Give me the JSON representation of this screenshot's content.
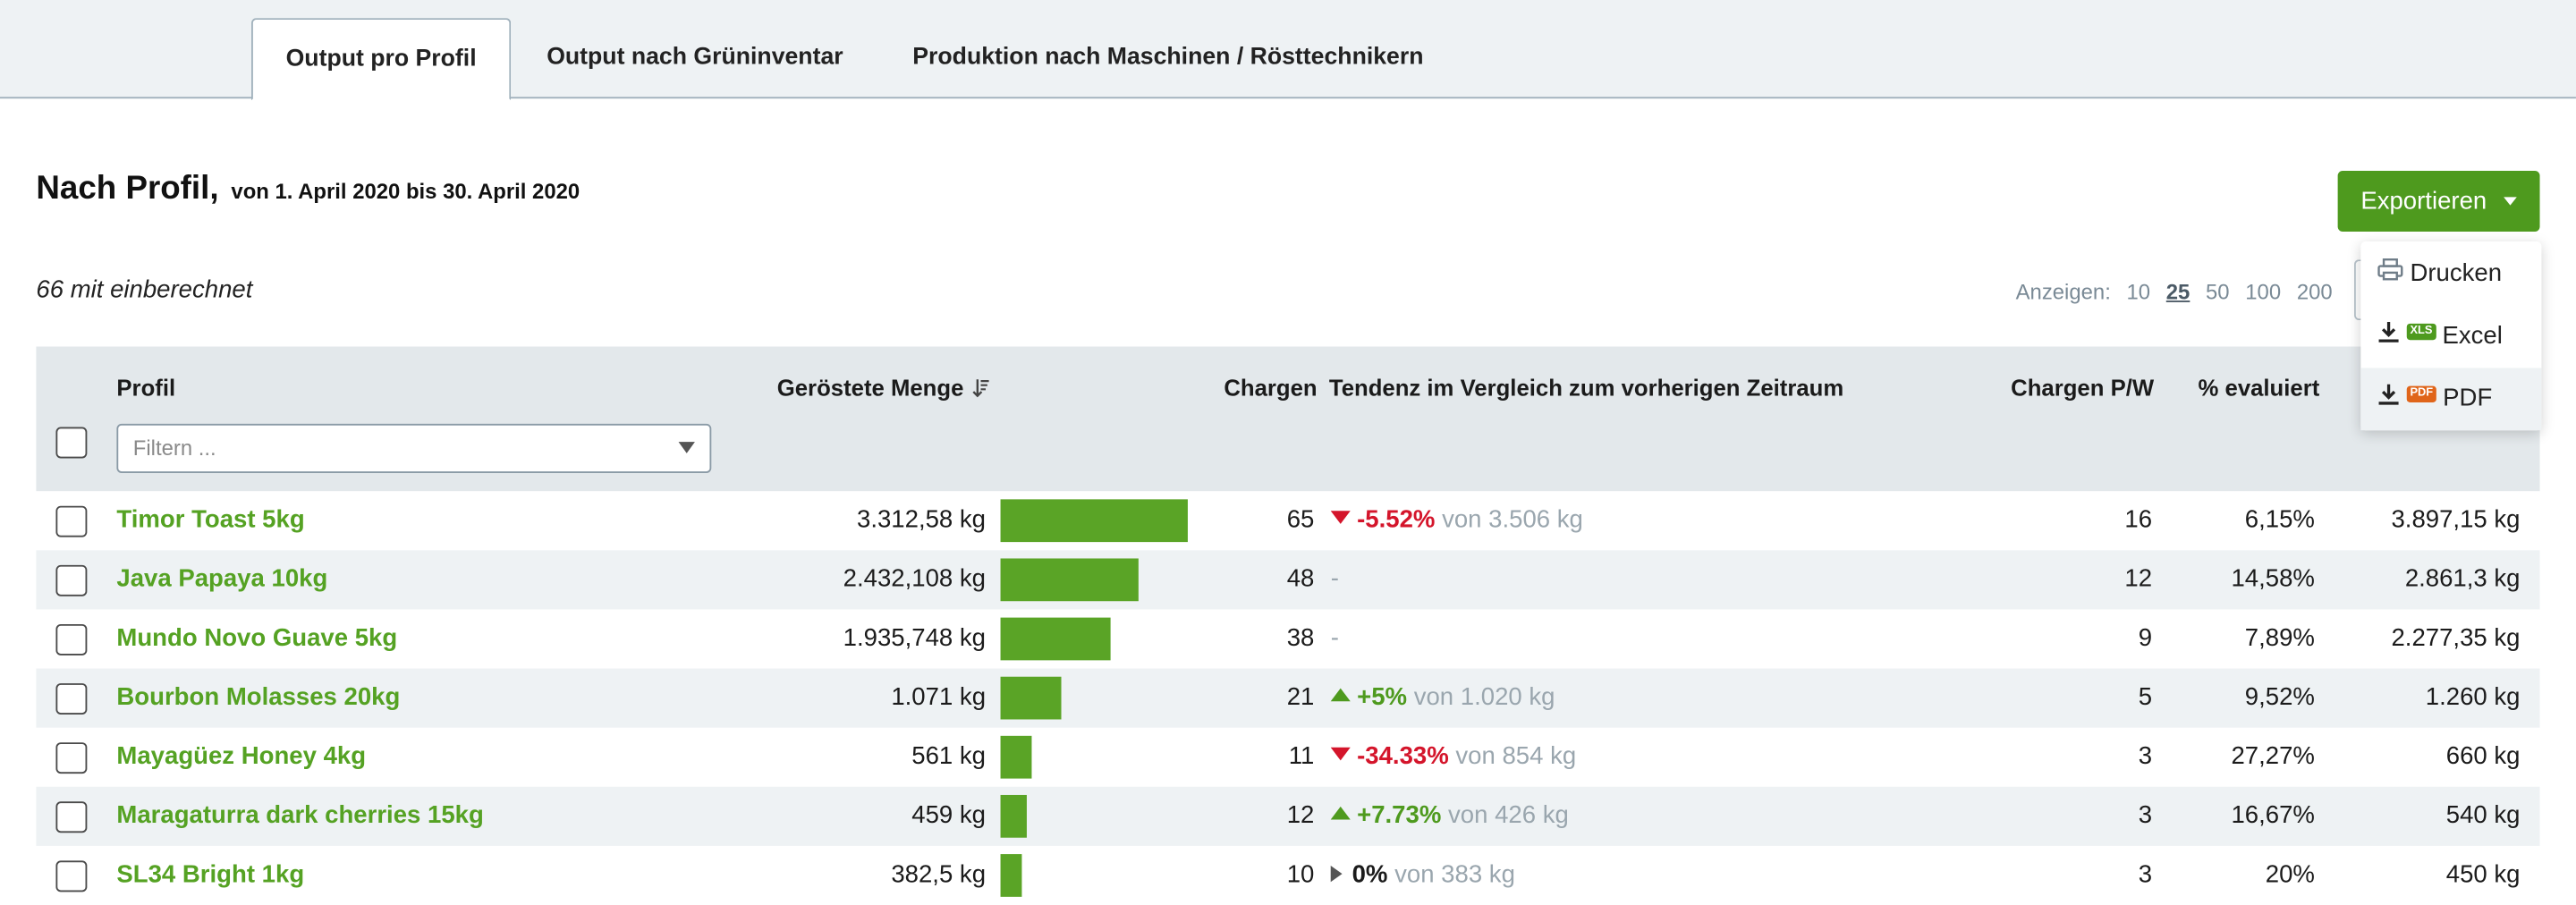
{
  "tabs": [
    {
      "label": "Output pro Profil",
      "active": true
    },
    {
      "label": "Output nach Grüninventar",
      "active": false
    },
    {
      "label": "Produktion nach Maschinen / Rösttechnikern",
      "active": false
    }
  ],
  "header": {
    "title": "Nach Profil,",
    "range": "von 1. April 2020 bis 30. April 2020",
    "count": "66 mit einberechnet"
  },
  "export": {
    "label": "Exportieren",
    "menu": [
      {
        "label": "Drucken",
        "icon": "printer-icon"
      },
      {
        "label": "Excel",
        "icon": "download-icon",
        "badge": "XLS",
        "badge_color": "#4e9a1e"
      },
      {
        "label": "PDF",
        "icon": "download-icon",
        "badge": "PDF",
        "badge_color": "#e0651a"
      }
    ]
  },
  "pager": {
    "label": "Anzeigen:",
    "options": [
      "10",
      "25",
      "50",
      "100",
      "200"
    ],
    "selected": "25"
  },
  "table": {
    "columns": {
      "profile": "Profil",
      "roasted": "Geröstete Menge",
      "batches": "Chargen",
      "trend": "Tendenz im Vergleich zum vorherigen Zeitraum",
      "batches_pw": "Chargen P/W",
      "evaluated": "% evaluiert"
    },
    "filter_placeholder": "Filtern ...",
    "rows": [
      {
        "name": "Timor Toast 5kg",
        "roasted": "3.312,58 kg",
        "bar_fraction": 1.0,
        "batches": "65",
        "trend_dir": "down",
        "trend_pct": "-5.52%",
        "trend_from": "von 3.506 kg",
        "batches_pw": "16",
        "evaluated": "6,15%",
        "green": "3.897,15 kg"
      },
      {
        "name": "Java Papaya 10kg",
        "roasted": "2.432,108 kg",
        "bar_fraction": 0.734,
        "batches": "48",
        "trend_dir": "none",
        "trend_pct": "-",
        "trend_from": "",
        "batches_pw": "12",
        "evaluated": "14,58%",
        "green": "2.861,3 kg"
      },
      {
        "name": "Mundo Novo Guave 5kg",
        "roasted": "1.935,748 kg",
        "bar_fraction": 0.584,
        "batches": "38",
        "trend_dir": "none",
        "trend_pct": "-",
        "trend_from": "",
        "batches_pw": "9",
        "evaluated": "7,89%",
        "green": "2.277,35 kg"
      },
      {
        "name": "Bourbon Molasses 20kg",
        "roasted": "1.071 kg",
        "bar_fraction": 0.323,
        "batches": "21",
        "trend_dir": "up",
        "trend_pct": "+5%",
        "trend_from": "von 1.020 kg",
        "batches_pw": "5",
        "evaluated": "9,52%",
        "green": "1.260 kg"
      },
      {
        "name": "Mayagüez Honey 4kg",
        "roasted": "561 kg",
        "bar_fraction": 0.169,
        "batches": "11",
        "trend_dir": "down",
        "trend_pct": "-34.33%",
        "trend_from": "von 854 kg",
        "batches_pw": "3",
        "evaluated": "27,27%",
        "green": "660 kg"
      },
      {
        "name": "Maragaturra dark cherries 15kg",
        "roasted": "459 kg",
        "bar_fraction": 0.139,
        "batches": "12",
        "trend_dir": "up",
        "trend_pct": "+7.73%",
        "trend_from": "von 426 kg",
        "batches_pw": "3",
        "evaluated": "16,67%",
        "green": "540 kg"
      },
      {
        "name": "SL34 Bright 1kg",
        "roasted": "382,5 kg",
        "bar_fraction": 0.115,
        "batches": "10",
        "trend_dir": "flat",
        "trend_pct": "0%",
        "trend_from": "von 383 kg",
        "batches_pw": "3",
        "evaluated": "20%",
        "green": "450 kg"
      }
    ]
  },
  "colors": {
    "accent": "#4e9a1e",
    "link": "#55a223",
    "negative": "#d4152b",
    "header_bg": "#e3e8eb"
  }
}
